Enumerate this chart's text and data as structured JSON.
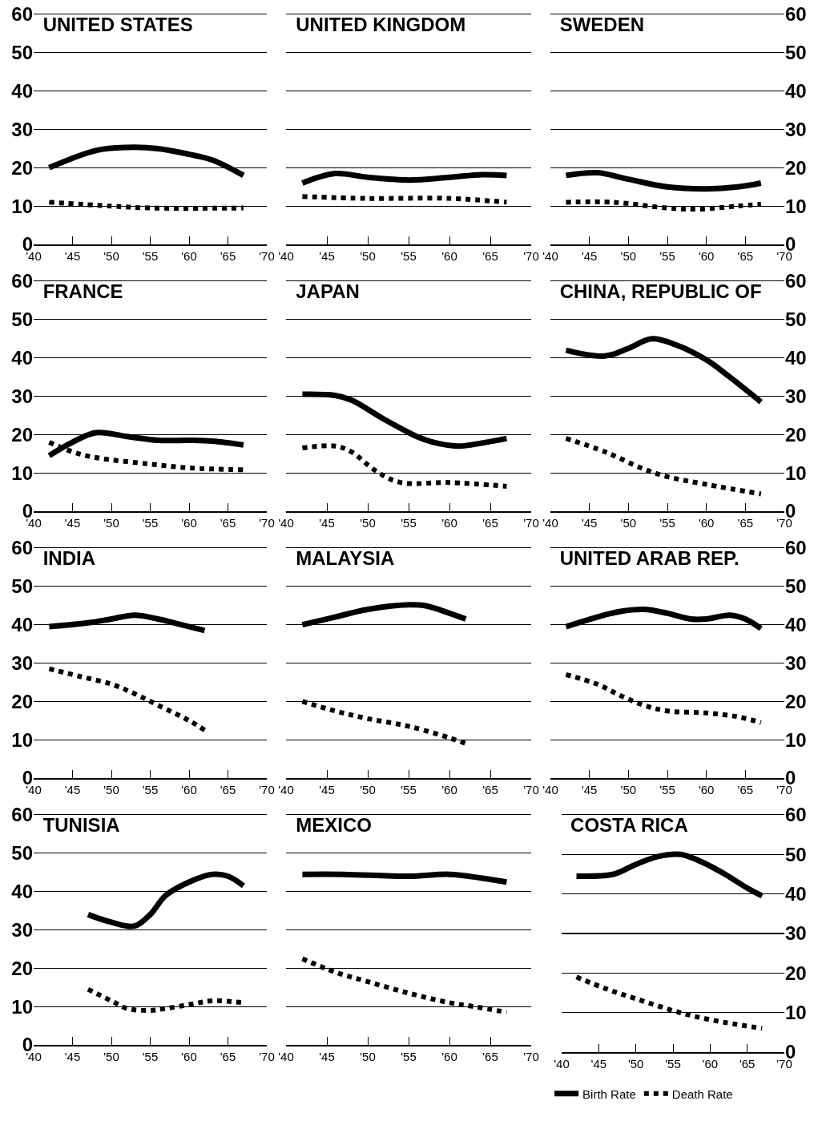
{
  "chart_data": [
    {
      "type": "line",
      "title": "UNITED STATES",
      "xlim": [
        1940,
        1970
      ],
      "ylim": [
        0,
        60
      ],
      "yticks": [
        0,
        10,
        20,
        30,
        40,
        50,
        60
      ],
      "xticks": [
        {
          "value": 1940,
          "label": "'40"
        },
        {
          "value": 1945,
          "label": "'45"
        },
        {
          "value": 1950,
          "label": "'50"
        },
        {
          "value": 1955,
          "label": "'55"
        },
        {
          "value": 1960,
          "label": "'60"
        },
        {
          "value": 1965,
          "label": "'65"
        },
        {
          "value": 1970,
          "label": "'70"
        }
      ],
      "grid": "y",
      "series": [
        {
          "color": "#000000",
          "line_style": "solid",
          "x": [
            1942,
            1948,
            1952,
            1956,
            1960,
            1963,
            1967
          ],
          "values": [
            20,
            24.5,
            25.3,
            25,
            23.5,
            22,
            18
          ]
        },
        {
          "color": "#000000",
          "line_style": "dotted",
          "x": [
            1942,
            1950,
            1955,
            1967
          ],
          "values": [
            11,
            10,
            9.5,
            9.5
          ]
        }
      ]
    },
    {
      "type": "line",
      "title": "UNITED KINGDOM",
      "tick_labels": "x",
      "xlim": [
        1940,
        1970
      ],
      "ylim": [
        0,
        60
      ],
      "yticks": [
        0,
        10,
        20,
        30,
        40,
        50,
        60
      ],
      "xticks": [
        {
          "value": 1940,
          "label": "'40"
        },
        {
          "value": 1945,
          "label": "'45"
        },
        {
          "value": 1950,
          "label": "'50"
        },
        {
          "value": 1955,
          "label": "'55"
        },
        {
          "value": 1960,
          "label": "'60"
        },
        {
          "value": 1965,
          "label": "'65"
        },
        {
          "value": 1970,
          "label": "'70"
        }
      ],
      "grid": "y",
      "series": [
        {
          "color": "#000000",
          "line_style": "solid",
          "x": [
            1942,
            1946,
            1950,
            1955,
            1960,
            1964,
            1967
          ],
          "values": [
            16,
            18.5,
            17.5,
            16.8,
            17.5,
            18.2,
            18
          ]
        },
        {
          "color": "#000000",
          "line_style": "dotted",
          "x": [
            1942,
            1950,
            1960,
            1967
          ],
          "values": [
            12.5,
            12,
            12,
            11
          ]
        }
      ]
    },
    {
      "type": "line",
      "title": "SWEDEN",
      "xlim": [
        1940,
        1970
      ],
      "ylim": [
        0,
        60
      ],
      "yticks": [
        0,
        10,
        20,
        30,
        40,
        50,
        60
      ],
      "xticks": [
        {
          "value": 1940,
          "label": "'40"
        },
        {
          "value": 1945,
          "label": "'45"
        },
        {
          "value": 1950,
          "label": "'50"
        },
        {
          "value": 1955,
          "label": "'55"
        },
        {
          "value": 1960,
          "label": "'60"
        },
        {
          "value": 1965,
          "label": "'65"
        },
        {
          "value": 1970,
          "label": "'70"
        }
      ],
      "grid": "y",
      "series": [
        {
          "color": "#000000",
          "line_style": "solid",
          "x": [
            1942,
            1946,
            1950,
            1955,
            1960,
            1964,
            1967
          ],
          "values": [
            18,
            18.7,
            17,
            15,
            14.5,
            15,
            16
          ]
        },
        {
          "color": "#000000",
          "line_style": "dotted",
          "x": [
            1942,
            1948,
            1955,
            1959,
            1964,
            1967
          ],
          "values": [
            11,
            11,
            9.5,
            9.2,
            10,
            10.5
          ]
        }
      ]
    },
    {
      "type": "line",
      "title": "FRANCE",
      "xlim": [
        1940,
        1970
      ],
      "ylim": [
        0,
        60
      ],
      "yticks": [
        0,
        10,
        20,
        30,
        40,
        50,
        60
      ],
      "xticks": [
        {
          "value": 1940,
          "label": "'40"
        },
        {
          "value": 1945,
          "label": "'45"
        },
        {
          "value": 1950,
          "label": "'50"
        },
        {
          "value": 1955,
          "label": "'55"
        },
        {
          "value": 1960,
          "label": "'60"
        },
        {
          "value": 1965,
          "label": "'65"
        },
        {
          "value": 1970,
          "label": "'70"
        }
      ],
      "grid": "y",
      "series": [
        {
          "color": "#000000",
          "line_style": "solid",
          "x": [
            1942,
            1945,
            1948,
            1952,
            1956,
            1960,
            1963,
            1967
          ],
          "values": [
            14.5,
            18,
            20.5,
            19.5,
            18.5,
            18.5,
            18.3,
            17.3
          ]
        },
        {
          "color": "#000000",
          "line_style": "dotted",
          "x": [
            1942,
            1945,
            1948,
            1955,
            1960,
            1967
          ],
          "values": [
            18,
            15.5,
            14,
            12.3,
            11.3,
            10.8
          ]
        }
      ]
    },
    {
      "type": "line",
      "title": "JAPAN",
      "tick_labels": "x",
      "xlim": [
        1940,
        1970
      ],
      "ylim": [
        0,
        60
      ],
      "yticks": [
        0,
        10,
        20,
        30,
        40,
        50,
        60
      ],
      "xticks": [
        {
          "value": 1940,
          "label": "'40"
        },
        {
          "value": 1945,
          "label": "'45"
        },
        {
          "value": 1950,
          "label": "'50"
        },
        {
          "value": 1955,
          "label": "'55"
        },
        {
          "value": 1960,
          "label": "'60"
        },
        {
          "value": 1965,
          "label": "'65"
        },
        {
          "value": 1970,
          "label": "'70"
        }
      ],
      "grid": "y",
      "series": [
        {
          "color": "#000000",
          "line_style": "solid",
          "x": [
            1942,
            1946,
            1948,
            1952,
            1956,
            1958,
            1961,
            1964,
            1967
          ],
          "values": [
            30.5,
            30.2,
            29,
            24,
            19.5,
            18,
            17,
            17.8,
            19
          ]
        },
        {
          "color": "#000000",
          "line_style": "dotted",
          "x": [
            1942,
            1946,
            1948,
            1951,
            1954,
            1960,
            1967
          ],
          "values": [
            16.5,
            17,
            15.5,
            10.5,
            7.5,
            7.5,
            6.5
          ]
        }
      ]
    },
    {
      "type": "line",
      "title": "CHINA, REPUBLIC OF",
      "xlim": [
        1940,
        1970
      ],
      "ylim": [
        0,
        60
      ],
      "yticks": [
        0,
        10,
        20,
        30,
        40,
        50,
        60
      ],
      "xticks": [
        {
          "value": 1940,
          "label": "'40"
        },
        {
          "value": 1945,
          "label": "'45"
        },
        {
          "value": 1950,
          "label": "'50"
        },
        {
          "value": 1955,
          "label": "'55"
        },
        {
          "value": 1960,
          "label": "'60"
        },
        {
          "value": 1965,
          "label": "'65"
        },
        {
          "value": 1970,
          "label": "'70"
        }
      ],
      "grid": "y",
      "series": [
        {
          "color": "#000000",
          "line_style": "solid",
          "x": [
            1942,
            1947,
            1950,
            1953,
            1956,
            1960,
            1963,
            1967
          ],
          "values": [
            42,
            40.5,
            42.5,
            45,
            43.5,
            39.5,
            35,
            28.5
          ]
        },
        {
          "color": "#000000",
          "line_style": "dotted",
          "x": [
            1942,
            1947,
            1952,
            1955,
            1960,
            1967
          ],
          "values": [
            19,
            15.5,
            11,
            9,
            7,
            4.5
          ]
        }
      ]
    },
    {
      "type": "line",
      "title": "INDIA",
      "xlim": [
        1940,
        1970
      ],
      "ylim": [
        0,
        60
      ],
      "yticks": [
        0,
        10,
        20,
        30,
        40,
        50,
        60
      ],
      "xticks": [
        {
          "value": 1940,
          "label": "'40"
        },
        {
          "value": 1945,
          "label": "'45"
        },
        {
          "value": 1950,
          "label": "'50"
        },
        {
          "value": 1955,
          "label": "'55"
        },
        {
          "value": 1960,
          "label": "'60"
        },
        {
          "value": 1965,
          "label": "'65"
        },
        {
          "value": 1970,
          "label": "'70"
        }
      ],
      "grid": "y",
      "series": [
        {
          "color": "#000000",
          "line_style": "solid",
          "x": [
            1942,
            1947,
            1950,
            1953,
            1956,
            1959,
            1962
          ],
          "values": [
            39.5,
            40.5,
            41.5,
            42.5,
            41.5,
            40,
            38.5
          ]
        },
        {
          "color": "#000000",
          "line_style": "dotted",
          "x": [
            1942,
            1946,
            1950,
            1953,
            1956,
            1960,
            1962
          ],
          "values": [
            28.5,
            26.5,
            24.5,
            22,
            19,
            15,
            12.5
          ]
        }
      ]
    },
    {
      "type": "line",
      "title": "MALAYSIA",
      "tick_labels": "x",
      "xlim": [
        1940,
        1970
      ],
      "ylim": [
        0,
        60
      ],
      "yticks": [
        0,
        10,
        20,
        30,
        40,
        50,
        60
      ],
      "xticks": [
        {
          "value": 1940,
          "label": "'40"
        },
        {
          "value": 1945,
          "label": "'45"
        },
        {
          "value": 1950,
          "label": "'50"
        },
        {
          "value": 1955,
          "label": "'55"
        },
        {
          "value": 1960,
          "label": "'60"
        },
        {
          "value": 1965,
          "label": "'65"
        },
        {
          "value": 1970,
          "label": "'70"
        }
      ],
      "grid": "y",
      "series": [
        {
          "color": "#000000",
          "line_style": "solid",
          "x": [
            1942,
            1946,
            1950,
            1955,
            1957,
            1960,
            1962
          ],
          "values": [
            40,
            42,
            44,
            45.2,
            45,
            43,
            41.5
          ]
        },
        {
          "color": "#000000",
          "line_style": "dotted",
          "x": [
            1942,
            1946,
            1950,
            1955,
            1960,
            1962
          ],
          "values": [
            20,
            17.5,
            15.5,
            13.5,
            10.5,
            9
          ]
        }
      ]
    },
    {
      "type": "line",
      "title": "UNITED ARAB REP.",
      "xlim": [
        1940,
        1970
      ],
      "ylim": [
        0,
        60
      ],
      "yticks": [
        0,
        10,
        20,
        30,
        40,
        50,
        60
      ],
      "xticks": [
        {
          "value": 1940,
          "label": "'40"
        },
        {
          "value": 1945,
          "label": "'45"
        },
        {
          "value": 1950,
          "label": "'50"
        },
        {
          "value": 1955,
          "label": "'55"
        },
        {
          "value": 1960,
          "label": "'60"
        },
        {
          "value": 1965,
          "label": "'65"
        },
        {
          "value": 1970,
          "label": "'70"
        }
      ],
      "grid": "y",
      "series": [
        {
          "color": "#000000",
          "line_style": "solid",
          "x": [
            1942,
            1946,
            1949,
            1952,
            1955,
            1958,
            1960,
            1963,
            1965,
            1967
          ],
          "values": [
            39.5,
            42,
            43.5,
            44,
            43,
            41.5,
            41.5,
            42.5,
            41.5,
            39
          ]
        },
        {
          "color": "#000000",
          "line_style": "dotted",
          "x": [
            1942,
            1946,
            1949,
            1952,
            1955,
            1960,
            1964,
            1967
          ],
          "values": [
            27,
            24.5,
            21.5,
            19,
            17.5,
            17,
            16,
            14.5
          ]
        }
      ]
    },
    {
      "type": "line",
      "title": "TUNISIA",
      "xlim": [
        1940,
        1970
      ],
      "ylim": [
        0,
        60
      ],
      "yticks": [
        0,
        10,
        20,
        30,
        40,
        50,
        60
      ],
      "xticks": [
        {
          "value": 1940,
          "label": "'40"
        },
        {
          "value": 1945,
          "label": "'45"
        },
        {
          "value": 1950,
          "label": "'50"
        },
        {
          "value": 1955,
          "label": "'55"
        },
        {
          "value": 1960,
          "label": "'60"
        },
        {
          "value": 1965,
          "label": "'65"
        },
        {
          "value": 1970,
          "label": "'70"
        }
      ],
      "grid": "y",
      "series": [
        {
          "color": "#000000",
          "line_style": "solid",
          "x": [
            1947,
            1950,
            1953,
            1955,
            1957,
            1960,
            1963,
            1965,
            1967
          ],
          "values": [
            34,
            32,
            31,
            34,
            39,
            42.5,
            44.5,
            44,
            41.5
          ]
        },
        {
          "color": "#000000",
          "line_style": "dotted",
          "x": [
            1947,
            1950,
            1952,
            1955,
            1957,
            1960,
            1963,
            1967
          ],
          "values": [
            14.5,
            11.5,
            9.5,
            9,
            9.5,
            10.5,
            11.5,
            11
          ]
        }
      ]
    },
    {
      "type": "line",
      "title": "MEXICO",
      "tick_labels": "x",
      "xlim": [
        1940,
        1970
      ],
      "ylim": [
        0,
        60
      ],
      "yticks": [
        0,
        10,
        20,
        30,
        40,
        50,
        60
      ],
      "xticks": [
        {
          "value": 1940,
          "label": "'40"
        },
        {
          "value": 1945,
          "label": "'45"
        },
        {
          "value": 1950,
          "label": "'50"
        },
        {
          "value": 1955,
          "label": "'55"
        },
        {
          "value": 1960,
          "label": "'60"
        },
        {
          "value": 1965,
          "label": "'65"
        },
        {
          "value": 1970,
          "label": "'70"
        }
      ],
      "grid": "y",
      "series": [
        {
          "color": "#000000",
          "line_style": "solid",
          "x": [
            1942,
            1947,
            1955,
            1960,
            1964,
            1967
          ],
          "values": [
            44.5,
            44.5,
            44,
            44.5,
            43.5,
            42.5
          ]
        },
        {
          "color": "#000000",
          "line_style": "dotted",
          "x": [
            1942,
            1946,
            1950,
            1955,
            1960,
            1963,
            1967
          ],
          "values": [
            22.5,
            19,
            16.5,
            13.5,
            11,
            10,
            8.5
          ]
        }
      ]
    },
    {
      "type": "line",
      "title": "COSTA RICA",
      "legend": "bottom",
      "xlim": [
        1940,
        1970
      ],
      "ylim": [
        0,
        60
      ],
      "yticks": [
        0,
        10,
        20,
        30,
        40,
        50,
        60
      ],
      "xticks": [
        {
          "value": 1940,
          "label": "'40"
        },
        {
          "value": 1945,
          "label": "'45"
        },
        {
          "value": 1950,
          "label": "'50"
        },
        {
          "value": 1955,
          "label": "'55"
        },
        {
          "value": 1960,
          "label": "'60"
        },
        {
          "value": 1965,
          "label": "'65"
        },
        {
          "value": 1970,
          "label": "'70"
        }
      ],
      "grid": "y",
      "series": [
        {
          "name": "Birth Rate",
          "color": "#000000",
          "line_style": "solid",
          "x": [
            1942,
            1947,
            1950,
            1953,
            1956,
            1959,
            1962,
            1965,
            1967
          ],
          "values": [
            44.5,
            45,
            47.5,
            49.5,
            50,
            48,
            45,
            41.5,
            39.5
          ]
        },
        {
          "name": "Death Rate",
          "color": "#000000",
          "line_style": "dotted",
          "x": [
            1942,
            1946,
            1950,
            1955,
            1958,
            1962,
            1967
          ],
          "values": [
            19,
            16,
            13.5,
            10.5,
            9,
            7.5,
            6
          ]
        }
      ]
    }
  ]
}
